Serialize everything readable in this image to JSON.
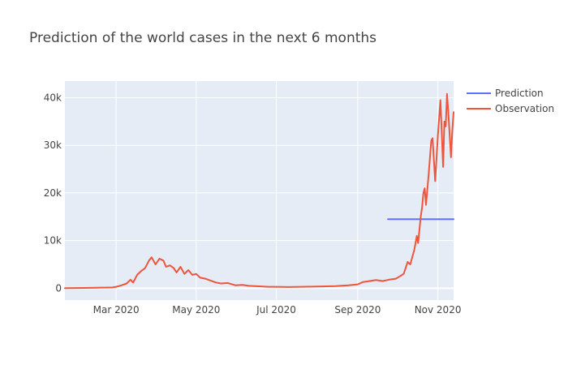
{
  "chart_data": {
    "type": "line",
    "title": "Prediction of the world cases in the next 6 months",
    "xlabel": "",
    "ylabel": "",
    "x_range": [
      "2020-01-22",
      "2020-11-13"
    ],
    "y_range": [
      -2500,
      43500
    ],
    "x_ticks": [
      {
        "date": "2020-03-01",
        "label": "Mar 2020"
      },
      {
        "date": "2020-05-01",
        "label": "May 2020"
      },
      {
        "date": "2020-07-01",
        "label": "Jul 2020"
      },
      {
        "date": "2020-09-01",
        "label": "Sep 2020"
      },
      {
        "date": "2020-11-01",
        "label": "Nov 2020"
      }
    ],
    "y_ticks": [
      {
        "value": 0,
        "label": "0"
      },
      {
        "value": 10000,
        "label": "10k"
      },
      {
        "value": 20000,
        "label": "20k"
      },
      {
        "value": 30000,
        "label": "30k"
      },
      {
        "value": 40000,
        "label": "40k"
      }
    ],
    "grid": true,
    "legend_position": "top-right",
    "series": [
      {
        "name": "Prediction",
        "color": "#636efa",
        "points": [
          [
            "2020-09-24",
            14500
          ],
          [
            "2020-11-13",
            14500
          ]
        ]
      },
      {
        "name": "Observation",
        "color": "#ef553b",
        "points": [
          [
            "2020-01-22",
            0
          ],
          [
            "2020-02-05",
            50
          ],
          [
            "2020-02-15",
            100
          ],
          [
            "2020-02-27",
            150
          ],
          [
            "2020-03-01",
            300
          ],
          [
            "2020-03-05",
            600
          ],
          [
            "2020-03-09",
            1000
          ],
          [
            "2020-03-12",
            1800
          ],
          [
            "2020-03-14",
            1200
          ],
          [
            "2020-03-17",
            2800
          ],
          [
            "2020-03-20",
            3600
          ],
          [
            "2020-03-23",
            4200
          ],
          [
            "2020-03-26",
            5800
          ],
          [
            "2020-03-28",
            6500
          ],
          [
            "2020-03-31",
            5000
          ],
          [
            "2020-04-03",
            6200
          ],
          [
            "2020-04-06",
            5800
          ],
          [
            "2020-04-08",
            4500
          ],
          [
            "2020-04-11",
            4800
          ],
          [
            "2020-04-14",
            4200
          ],
          [
            "2020-04-16",
            3300
          ],
          [
            "2020-04-19",
            4500
          ],
          [
            "2020-04-22",
            3000
          ],
          [
            "2020-04-25",
            3800
          ],
          [
            "2020-04-28",
            2800
          ],
          [
            "2020-05-01",
            3000
          ],
          [
            "2020-05-04",
            2200
          ],
          [
            "2020-05-08",
            2000
          ],
          [
            "2020-05-12",
            1600
          ],
          [
            "2020-05-16",
            1200
          ],
          [
            "2020-05-20",
            1000
          ],
          [
            "2020-05-25",
            1100
          ],
          [
            "2020-05-31",
            600
          ],
          [
            "2020-06-05",
            700
          ],
          [
            "2020-06-10",
            500
          ],
          [
            "2020-06-18",
            400
          ],
          [
            "2020-06-25",
            300
          ],
          [
            "2020-07-01",
            300
          ],
          [
            "2020-07-10",
            250
          ],
          [
            "2020-07-20",
            300
          ],
          [
            "2020-08-01",
            350
          ],
          [
            "2020-08-15",
            450
          ],
          [
            "2020-08-25",
            600
          ],
          [
            "2020-09-01",
            800
          ],
          [
            "2020-09-05",
            1300
          ],
          [
            "2020-09-10",
            1500
          ],
          [
            "2020-09-15",
            1700
          ],
          [
            "2020-09-20",
            1500
          ],
          [
            "2020-09-25",
            1800
          ],
          [
            "2020-09-30",
            2000
          ],
          [
            "2020-10-03",
            2500
          ],
          [
            "2020-10-06",
            3000
          ],
          [
            "2020-10-09",
            5500
          ],
          [
            "2020-10-11",
            5000
          ],
          [
            "2020-10-14",
            8000
          ],
          [
            "2020-10-16",
            11000
          ],
          [
            "2020-10-17",
            9500
          ],
          [
            "2020-10-19",
            15000
          ],
          [
            "2020-10-20",
            17000
          ],
          [
            "2020-10-21",
            20000
          ],
          [
            "2020-10-22",
            21000
          ],
          [
            "2020-10-23",
            17500
          ],
          [
            "2020-10-25",
            24000
          ],
          [
            "2020-10-27",
            31000
          ],
          [
            "2020-10-28",
            31500
          ],
          [
            "2020-10-30",
            22500
          ],
          [
            "2020-11-01",
            32000
          ],
          [
            "2020-11-03",
            39500
          ],
          [
            "2020-11-05",
            25500
          ],
          [
            "2020-11-06",
            35000
          ],
          [
            "2020-11-07",
            34000
          ],
          [
            "2020-11-08",
            40800
          ],
          [
            "2020-11-09",
            37000
          ],
          [
            "2020-11-11",
            27500
          ],
          [
            "2020-11-12",
            33000
          ],
          [
            "2020-11-13",
            37000
          ]
        ]
      }
    ]
  }
}
